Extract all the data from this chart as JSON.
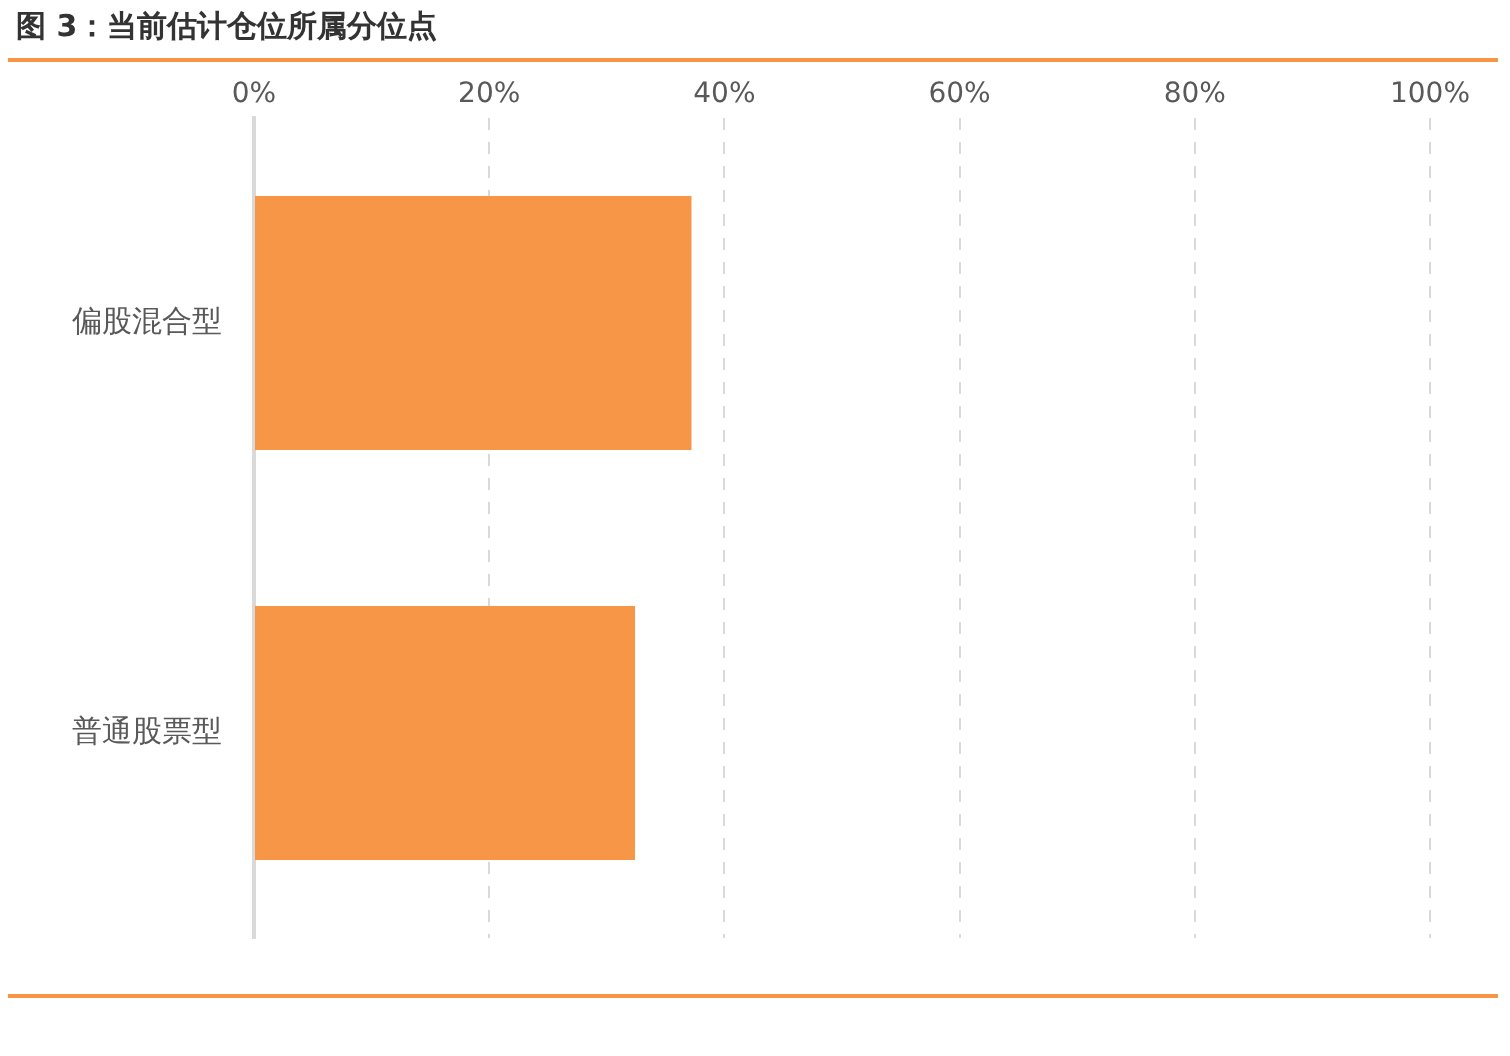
{
  "chart_data": {
    "type": "bar",
    "orientation": "horizontal",
    "title": "图 3：当前估计仓位所属分位点",
    "categories": [
      "偏股混合型",
      "普通股票型"
    ],
    "values": [
      37.2,
      32.4
    ],
    "color": "#f79646",
    "xlim": [
      0,
      100
    ],
    "xticks": [
      {
        "value": 0,
        "label": "0%"
      },
      {
        "value": 20,
        "label": "20%"
      },
      {
        "value": 40,
        "label": "40%"
      },
      {
        "value": 60,
        "label": "60%"
      },
      {
        "value": 80,
        "label": "80%"
      },
      {
        "value": 100,
        "label": "100%"
      }
    ],
    "grid": "x"
  }
}
